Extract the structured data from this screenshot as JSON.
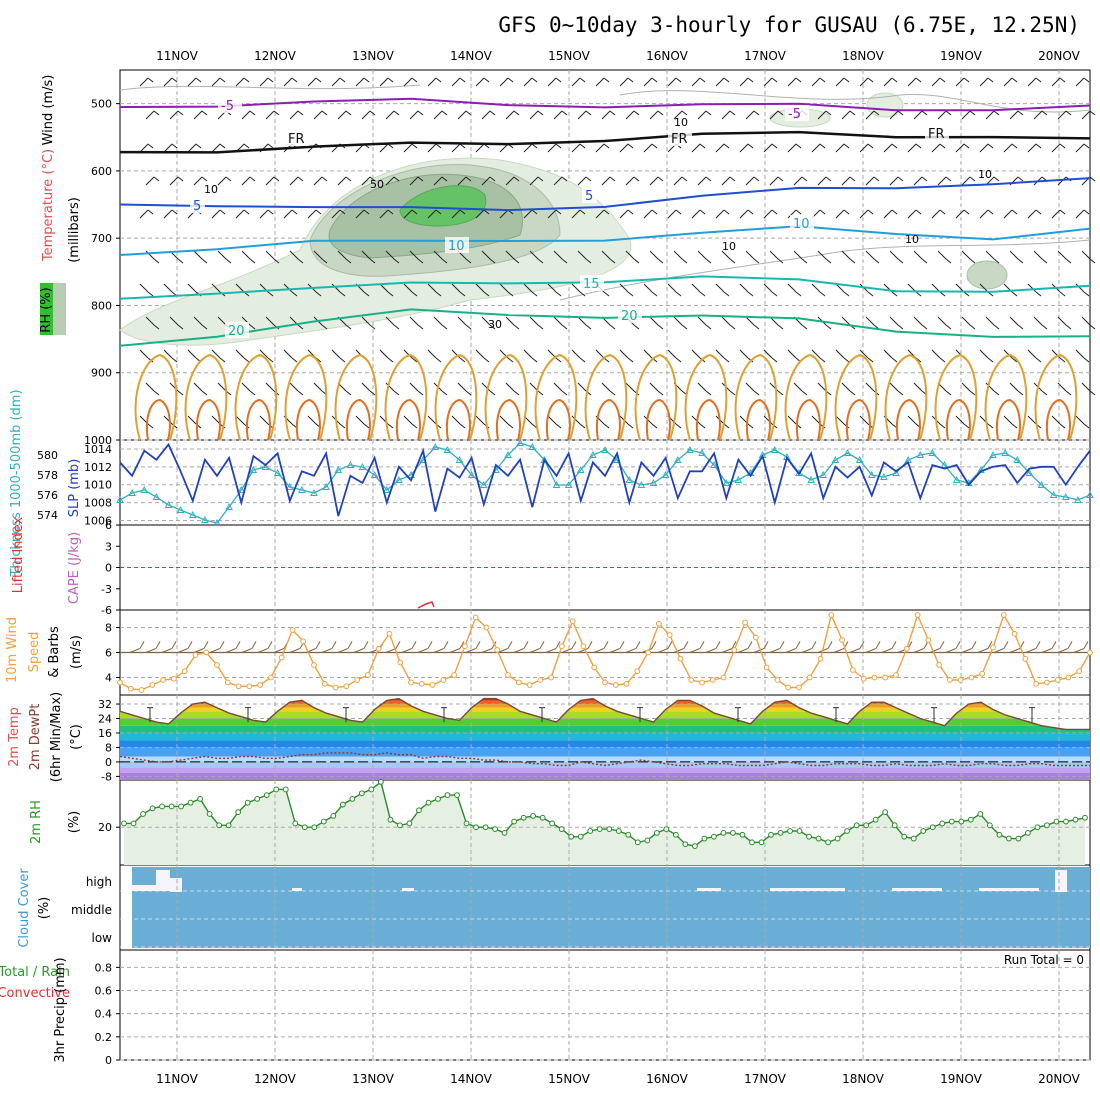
{
  "title": "GFS 0~10day 3-hourly for GUSAU (6.75E, 12.25N)",
  "colors": {
    "temp_purple": "#8a1fb0",
    "temp_blue": "#1f4fd0",
    "temp_cyan": "#1f9fdc",
    "temp_teal": "#18b8b0",
    "temp_green": "#18b088",
    "freezing": "#111111",
    "cape_orange": "#e0a030",
    "thickness": "#30b0c0",
    "slp": "#2040c0",
    "wind": "#f0a040",
    "barb": "#806040",
    "rh2m": "#2a8a2a",
    "rh2m_fill": "#e6f0e2",
    "cloud": "#6aaed6",
    "li_zero": "#e03030",
    "precip_total": "#2a9a2a",
    "precip_conv": "#e03030"
  },
  "chart_data": [
    {
      "panel": "upper-air",
      "type": "line",
      "x_dates": [
        "11NOV",
        "12NOV",
        "13NOV",
        "14NOV",
        "15NOV",
        "16NOV",
        "17NOV",
        "18NOV",
        "19NOV",
        "20NOV"
      ],
      "ylabel_parts": [
        "Wind (m/s)",
        "Temperature (°C)",
        "RH (%)",
        "(millibars)"
      ],
      "y_ticks": [
        500,
        600,
        700,
        800,
        900,
        1000
      ],
      "ylim": [
        1000,
        450
      ],
      "isotherm_labels": [
        "-5",
        "-5",
        "FR",
        "FR",
        "FR",
        "5",
        "5",
        "10",
        "10",
        "15",
        "20",
        "20"
      ],
      "rh_contour_labels": [
        "10",
        "10",
        "10",
        "10",
        "10",
        "30",
        "50"
      ],
      "rh_legend": "RH (%)",
      "isotherms": [
        {
          "name": "-5",
          "level_series": [
            505,
            500,
            498,
            497,
            500,
            502,
            504,
            503,
            506,
            508,
            507
          ]
        },
        {
          "name": "FR",
          "level_series": [
            572,
            568,
            565,
            562,
            558,
            552,
            548,
            545,
            546,
            548,
            556
          ]
        },
        {
          "name": "5",
          "level_series": [
            650,
            648,
            655,
            658,
            656,
            650,
            640,
            628,
            622,
            618,
            615
          ]
        },
        {
          "name": "10",
          "level_series": [
            725,
            712,
            705,
            708,
            702,
            700,
            695,
            685,
            690,
            700,
            690
          ]
        },
        {
          "name": "15",
          "level_series": [
            790,
            778,
            775,
            770,
            765,
            762,
            760,
            764,
            775,
            778,
            775
          ]
        },
        {
          "name": "20",
          "level_series": [
            860,
            842,
            825,
            810,
            812,
            815,
            818,
            822,
            835,
            845,
            850
          ]
        }
      ]
    },
    {
      "panel": "thickness-slp",
      "type": "line",
      "ylabel_left": "Thickness 1000-500mb (dm)",
      "ylabel_right": "SLP (mb)",
      "left_ticks": [
        574,
        576,
        578,
        580
      ],
      "right_ticks": [
        1006,
        1008,
        1010,
        1012,
        1014
      ],
      "slp_range": [
        1005.5,
        1015
      ],
      "series": [
        {
          "name": "SLP (mb)",
          "values": [
            1012.5,
            1011.0,
            1013.8,
            1012.8,
            1014.5,
            1011.5,
            1008.2,
            1012.8,
            1011.0,
            1013.0,
            1008.0,
            1013.2,
            1012.2,
            1013.5,
            1008.2,
            1011.5,
            1011.0,
            1013.5,
            1006.5,
            1011.0,
            1010.2,
            1013.0,
            1008.0,
            1012.0,
            1010.5,
            1013.8,
            1007.0,
            1011.8,
            1010.8,
            1013.0,
            1007.8,
            1012.2,
            1011.0,
            1012.8,
            1007.5,
            1012.8,
            1011.0,
            1013.5,
            1008.2,
            1012.5,
            1011.0,
            1013.5,
            1008.0,
            1012.5,
            1011.0,
            1013.0,
            1008.5,
            1011.5,
            1011.5,
            1013.5,
            1008.5,
            1012.8,
            1011.0,
            1013.2,
            1008.0,
            1013.0,
            1011.2,
            1013.5,
            1008.5,
            1012.0,
            1010.8,
            1012.0,
            1008.8,
            1012.5,
            1011.5,
            1012.5,
            1008.5,
            1012.2,
            1011.8,
            1012.2,
            1010.0,
            1011.5,
            1012.0,
            1012.2,
            1010.2,
            1011.8,
            1012.0,
            1012.0,
            1010.0,
            1012.0,
            1013.8
          ]
        },
        {
          "name": "Thickness (dm)",
          "values": [
            575.5,
            576.2,
            576.5,
            575.8,
            575.0,
            574.5,
            574.0,
            573.5,
            573.2,
            574.8,
            576.5,
            578.5,
            578.8,
            578.2,
            576.8,
            576.5,
            576.2,
            576.8,
            578.5,
            579.0,
            578.8,
            578.0,
            576.5,
            577.5,
            578.0,
            579.5,
            580.8,
            580.5,
            579.5,
            578.0,
            577.0,
            578.5,
            580.0,
            581.2,
            580.8,
            579.5,
            577.0,
            577.0,
            578.5,
            580.0,
            580.5,
            579.5,
            577.5,
            577.0,
            577.2,
            578.0,
            579.5,
            580.5,
            580.2,
            579.0,
            577.2,
            577.5,
            578.2,
            580.0,
            580.5,
            579.8,
            578.2,
            577.5,
            578.0,
            579.5,
            580.2,
            579.5,
            578.0,
            577.8,
            578.2,
            579.5,
            580.0,
            580.2,
            579.0,
            577.5,
            577.2,
            578.5,
            580.0,
            580.2,
            579.5,
            578.2,
            577.0,
            576.0,
            575.8,
            575.5,
            576.0
          ]
        }
      ]
    },
    {
      "panel": "lifted-index-cape",
      "type": "line",
      "ylabel_parts": [
        "Lifted Index",
        "CAPE (J/kg)"
      ],
      "y_ticks": [
        "6",
        "3",
        "0",
        "-3",
        "-6"
      ],
      "ylim": [
        6,
        -6
      ],
      "series": [
        {
          "name": "CAPE (J/kg)",
          "values": []
        }
      ]
    },
    {
      "panel": "10m-wind",
      "type": "line",
      "ylabel_parts": [
        "10m Wind",
        "Speed",
        "& Barbs",
        "(m/s)"
      ],
      "y_ticks": [
        4,
        6,
        8
      ],
      "ylim": [
        2.6,
        9.4
      ],
      "series": [
        {
          "name": "10m Wind Speed (m/s)",
          "values": [
            3.6,
            3.1,
            3.0,
            3.4,
            3.8,
            3.9,
            4.5,
            5.8,
            6.0,
            5.0,
            3.6,
            3.3,
            3.3,
            3.4,
            4.0,
            5.6,
            7.8,
            6.9,
            5.0,
            3.5,
            3.2,
            3.3,
            3.8,
            4.2,
            6.3,
            7.5,
            5.2,
            3.6,
            3.5,
            3.4,
            3.8,
            4.2,
            6.5,
            8.8,
            8.0,
            6.2,
            4.2,
            3.6,
            3.4,
            3.8,
            4.0,
            6.5,
            8.5,
            6.5,
            4.8,
            3.6,
            3.4,
            3.5,
            4.5,
            6.0,
            8.3,
            7.4,
            5.5,
            3.8,
            3.6,
            3.8,
            4.0,
            6.2,
            8.4,
            7.2,
            4.8,
            3.8,
            3.2,
            3.2,
            4.0,
            5.5,
            9.0,
            7.0,
            4.6,
            3.9,
            4.0,
            4.0,
            4.2,
            6.3,
            9.0,
            7.0,
            5.0,
            3.8,
            3.8,
            4.0,
            4.3,
            6.4,
            9.0,
            7.5,
            5.5,
            3.5,
            3.6,
            3.8,
            4.0,
            4.5,
            6.0
          ]
        }
      ]
    },
    {
      "panel": "2m-temp-dewpoint",
      "type": "area",
      "ylabel_parts": [
        "2m Temp",
        "2m DewPt",
        "(6hr Min/Max)",
        "(°C)"
      ],
      "y_ticks": [
        -8,
        0,
        8,
        16,
        24,
        32
      ],
      "ylim": [
        -10,
        37
      ],
      "series": [
        {
          "name": "2m Temp (°C)",
          "values": [
            28,
            26,
            24,
            22,
            21,
            27,
            32,
            33,
            30,
            27,
            25,
            23,
            22,
            28,
            33,
            34,
            30,
            27,
            25,
            23,
            22,
            29,
            34,
            35,
            31,
            28,
            26,
            24,
            23,
            30,
            35,
            35,
            32,
            28,
            26,
            24,
            22,
            29,
            34,
            35,
            31,
            28,
            26,
            24,
            22,
            29,
            34,
            34,
            31,
            27,
            25,
            23,
            21,
            28,
            33,
            34,
            30,
            27,
            25,
            23,
            21,
            28,
            33,
            33,
            30,
            27,
            24,
            22,
            20,
            27,
            32,
            33,
            29,
            26,
            24,
            22,
            20,
            19,
            18,
            18,
            18
          ]
        },
        {
          "name": "2m DewPt (°C)",
          "values": [
            3,
            2,
            1,
            0,
            0,
            1,
            2,
            3,
            2,
            2,
            3,
            3,
            2,
            2,
            3,
            4,
            4,
            5,
            5,
            5,
            4,
            4,
            5,
            4,
            4,
            2,
            3,
            3,
            2,
            2,
            1,
            1,
            0,
            0,
            -1,
            -1,
            -2,
            -2,
            0,
            -1,
            -2,
            -1,
            0,
            1,
            0,
            -1,
            -2,
            -2,
            -1,
            -1,
            -1,
            -2,
            -2,
            -2,
            -1,
            0,
            -1,
            -2,
            -2,
            -1,
            -1,
            -1,
            -2,
            -2,
            -1,
            -2,
            -2,
            -2,
            -1,
            -2,
            -2,
            -1,
            -1,
            -2,
            -2,
            -1,
            -1,
            -2,
            -2,
            -2,
            -2
          ]
        }
      ]
    },
    {
      "panel": "2m-rh",
      "type": "line",
      "ylabel_parts": [
        "2m RH",
        "(%)"
      ],
      "y_ticks": [
        20
      ],
      "ylim": [
        0,
        45
      ],
      "series": [
        {
          "name": "2m RH (%)",
          "values": [
            22,
            22,
            27,
            30,
            31,
            31,
            31,
            33,
            35,
            27,
            21,
            21,
            28,
            33,
            35,
            37,
            40,
            40,
            22,
            20,
            20,
            23,
            26,
            32,
            35,
            38,
            40,
            44,
            24,
            21,
            22,
            29,
            33,
            35,
            37,
            37,
            22,
            20,
            20,
            19,
            17,
            23,
            25,
            26,
            25,
            22,
            19,
            15,
            15,
            18,
            19,
            19,
            18,
            16,
            12,
            13,
            17,
            19,
            16,
            11,
            10,
            14,
            15,
            17,
            17,
            16,
            12,
            12,
            16,
            17,
            18,
            18,
            15,
            14,
            12,
            14,
            18,
            21,
            21,
            24,
            28,
            21,
            15,
            14,
            18,
            20,
            22,
            23,
            23,
            24,
            27,
            21,
            16,
            14,
            14,
            17,
            20,
            21,
            23,
            23,
            24,
            25
          ]
        }
      ]
    },
    {
      "panel": "cloud-cover",
      "type": "heatmap",
      "ylabel_parts": [
        "Cloud Cover",
        "(%)"
      ],
      "y_tick_labels": [
        "high",
        "middle",
        "low"
      ]
    },
    {
      "panel": "precip",
      "type": "bar",
      "ylabel_parts": [
        "Total / Rain",
        "Convective",
        "3hr Precip (mm)"
      ],
      "y_ticks": [
        0,
        0.2,
        0.4,
        0.6,
        0.8
      ],
      "ylim": [
        0,
        0.95
      ],
      "run_total_label": "Run Total = 0",
      "values": []
    }
  ]
}
